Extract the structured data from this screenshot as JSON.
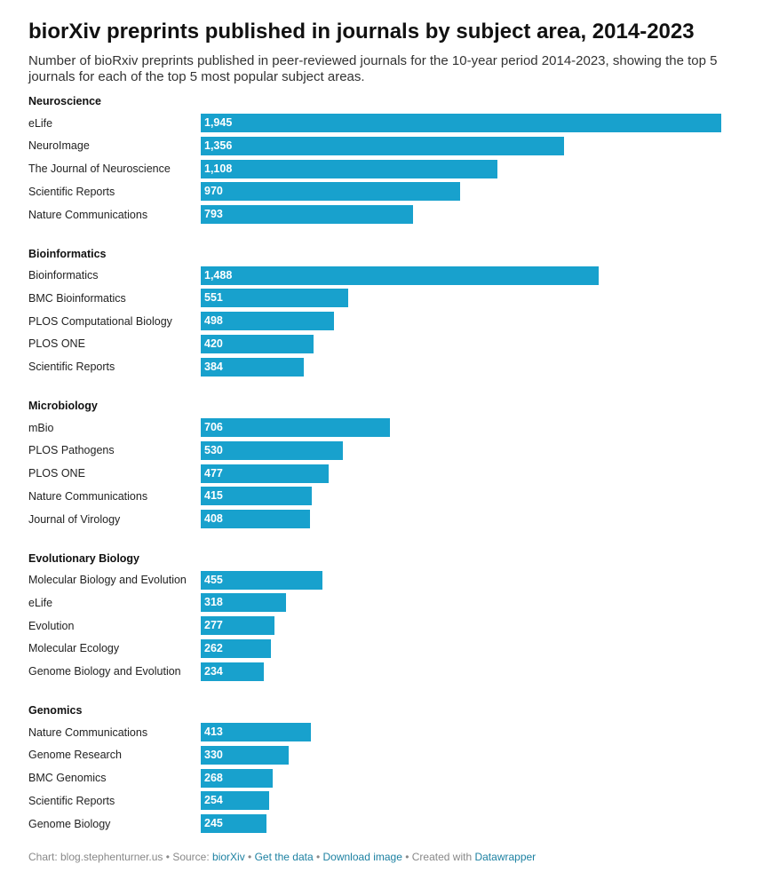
{
  "title": "biorXiv preprints published in journals by subject area, 2014-2023",
  "subtitle": "Number of bioRxiv preprints published in peer-reviewed journals for the 10-year period 2014-2023, showing the top 5 journals for each of the top 5 most popular subject areas.",
  "colors": {
    "bar": "#18a1cd",
    "bar_label": "#ffffff",
    "link": "#1d81a2",
    "footer": "#888888"
  },
  "chart_data": {
    "type": "bar",
    "orientation": "horizontal",
    "xlim": [
      0,
      1945
    ],
    "groups": [
      {
        "name": "Neuroscience",
        "categories": [
          "eLife",
          "NeuroImage",
          "The Journal of Neuroscience",
          "Scientific Reports",
          "Nature Communications"
        ],
        "values": [
          1945,
          1356,
          1108,
          970,
          793
        ],
        "labels": [
          "1,945",
          "1,356",
          "1,108",
          "970",
          "793"
        ]
      },
      {
        "name": "Bioinformatics",
        "categories": [
          "Bioinformatics",
          "BMC Bioinformatics",
          "PLOS Computational Biology",
          "PLOS ONE",
          "Scientific Reports"
        ],
        "values": [
          1488,
          551,
          498,
          420,
          384
        ],
        "labels": [
          "1,488",
          "551",
          "498",
          "420",
          "384"
        ]
      },
      {
        "name": "Microbiology",
        "categories": [
          "mBio",
          "PLOS Pathogens",
          "PLOS ONE",
          "Nature Communications",
          "Journal of Virology"
        ],
        "values": [
          706,
          530,
          477,
          415,
          408
        ],
        "labels": [
          "706",
          "530",
          "477",
          "415",
          "408"
        ]
      },
      {
        "name": "Evolutionary Biology",
        "categories": [
          "Molecular Biology and Evolution",
          "eLife",
          "Evolution",
          "Molecular Ecology",
          "Genome Biology and Evolution"
        ],
        "values": [
          455,
          318,
          277,
          262,
          234
        ],
        "labels": [
          "455",
          "318",
          "277",
          "262",
          "234"
        ]
      },
      {
        "name": "Genomics",
        "categories": [
          "Nature Communications",
          "Genome Research",
          "BMC Genomics",
          "Scientific Reports",
          "Genome Biology"
        ],
        "values": [
          413,
          330,
          268,
          254,
          245
        ],
        "labels": [
          "413",
          "330",
          "268",
          "254",
          "245"
        ]
      }
    ]
  },
  "footer": {
    "chart_credit": "Chart: blog.stephenturner.us",
    "sep": " • ",
    "source_prefix": "Source: ",
    "source_link": "biorXiv",
    "get_data": "Get the data",
    "download": "Download image",
    "created_prefix": "Created with ",
    "created_link": "Datawrapper"
  }
}
